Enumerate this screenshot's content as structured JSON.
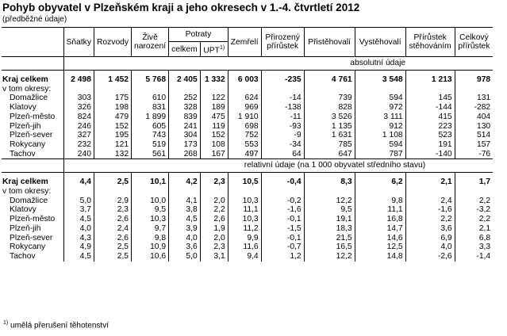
{
  "title": "Pohyb obyvatel v Plzeňském kraji a jeho okresech v 1.-4. čtvrtletí 2012",
  "subtitle": "(předběžné údaje)",
  "header": {
    "col0": "",
    "satky": "Sňatky",
    "rozvody": "Rozvody",
    "zive_1": "Živě",
    "zive_2": "narození",
    "potraty": "Potraty",
    "celkem": "celkem",
    "upt": "UPT",
    "upt_sup": "1)",
    "zemreli": "Zemřelí",
    "prirozeny_1": "Přirozený",
    "prirozeny_2": "přírůstek",
    "pristehovali": "Přistěhovalí",
    "vystehovali": "Vystěhovalí",
    "prirustek_st_1": "Přírůstek",
    "prirustek_st_2": "stěhováním",
    "celkovy_1": "Celkový",
    "celkovy_2": "přírůstek"
  },
  "section_abs": "absolutní údaje",
  "section_rel": "relativní údaje (na 1 000 obyvatel středního stavu)",
  "abs_rows": [
    {
      "name": "Kraj celkem",
      "total": true,
      "v": [
        "2 498",
        "1 452",
        "5 768",
        "2 405",
        "1 332",
        "6 003",
        "-235",
        "4 761",
        "3 548",
        "1 213",
        "978"
      ]
    },
    {
      "name": "v tom okresy:",
      "label": true,
      "v": [
        "",
        "",
        "",
        "",
        "",
        "",
        "",
        "",
        "",
        "",
        ""
      ]
    },
    {
      "name": "Domažlice",
      "v": [
        "303",
        "175",
        "610",
        "252",
        "122",
        "624",
        "-14",
        "739",
        "594",
        "145",
        "131"
      ]
    },
    {
      "name": "Klatovy",
      "v": [
        "326",
        "198",
        "831",
        "328",
        "189",
        "969",
        "-138",
        "828",
        "972",
        "-144",
        "-282"
      ]
    },
    {
      "name": "Plzeň-město",
      "v": [
        "824",
        "479",
        "1 899",
        "839",
        "475",
        "1 910",
        "-11",
        "3 526",
        "3 111",
        "415",
        "404"
      ]
    },
    {
      "name": "Plzeň-jih",
      "v": [
        "246",
        "152",
        "605",
        "241",
        "119",
        "698",
        "-93",
        "1 135",
        "912",
        "223",
        "130"
      ]
    },
    {
      "name": "Plzeň-sever",
      "v": [
        "327",
        "195",
        "743",
        "304",
        "152",
        "752",
        "-9",
        "1 631",
        "1 108",
        "523",
        "514"
      ]
    },
    {
      "name": "Rokycany",
      "v": [
        "232",
        "121",
        "519",
        "173",
        "108",
        "553",
        "-34",
        "785",
        "594",
        "191",
        "157"
      ]
    },
    {
      "name": "Tachov",
      "v": [
        "240",
        "132",
        "561",
        "268",
        "167",
        "497",
        "64",
        "647",
        "787",
        "-140",
        "-76"
      ]
    }
  ],
  "rel_rows": [
    {
      "name": "Kraj celkem",
      "total": true,
      "v": [
        "4,4",
        "2,5",
        "10,1",
        "4,2",
        "2,3",
        "10,5",
        "-0,4",
        "8,3",
        "6,2",
        "2,1",
        "1,7"
      ]
    },
    {
      "name": "v tom okresy:",
      "label": true,
      "v": [
        "",
        "",
        "",
        "",
        "",
        "",
        "",
        "",
        "",
        "",
        ""
      ]
    },
    {
      "name": "Domažlice",
      "v": [
        "5,0",
        "2,9",
        "10,0",
        "4,1",
        "2,0",
        "10,3",
        "-0,2",
        "12,2",
        "9,8",
        "2,4",
        "2,2"
      ]
    },
    {
      "name": "Klatovy",
      "v": [
        "3,7",
        "2,3",
        "9,5",
        "3,8",
        "2,2",
        "11,1",
        "-1,6",
        "9,5",
        "11,1",
        "-1,6",
        "-3,2"
      ]
    },
    {
      "name": "Plzeň-město",
      "v": [
        "4,5",
        "2,6",
        "10,3",
        "4,5",
        "2,6",
        "10,3",
        "-0,1",
        "19,1",
        "16,8",
        "2,2",
        "2,2"
      ]
    },
    {
      "name": "Plzeň-jih",
      "v": [
        "4,0",
        "2,4",
        "9,7",
        "3,9",
        "1,9",
        "11,2",
        "-1,5",
        "18,3",
        "14,7",
        "3,6",
        "2,1"
      ]
    },
    {
      "name": "Plzeň-sever",
      "v": [
        "4,3",
        "2,6",
        "9,8",
        "4,0",
        "2,0",
        "9,9",
        "-0,1",
        "21,5",
        "14,6",
        "6,9",
        "6,8"
      ]
    },
    {
      "name": "Rokycany",
      "v": [
        "4,9",
        "2,5",
        "10,9",
        "3,6",
        "2,3",
        "11,6",
        "-0,7",
        "16,5",
        "12,5",
        "4,0",
        "3,3"
      ]
    },
    {
      "name": "Tachov",
      "v": [
        "4,5",
        "2,5",
        "10,6",
        "5,0",
        "3,1",
        "9,4",
        "1,2",
        "12,2",
        "14,8",
        "-2,6",
        "-1,4"
      ]
    }
  ],
  "footnote": "umělá přerušení těhotenství",
  "footnote_sup": "1)"
}
